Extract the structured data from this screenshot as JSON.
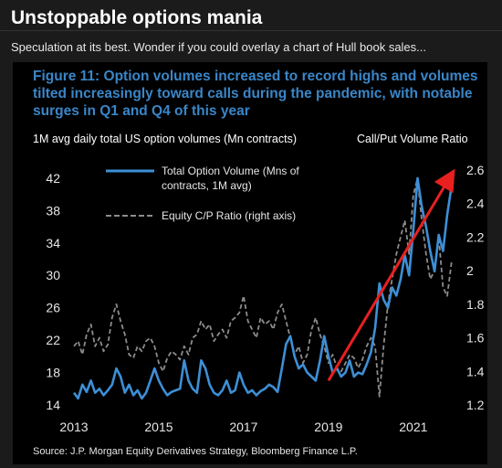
{
  "post": {
    "title": "Unstoppable options mania",
    "caption": "Speculation at its best. Wonder if you could overlay a chart of Hull book sales..."
  },
  "chart_data": {
    "type": "line",
    "title": "Figure 11: Option volumes increased to record highs and volumes tilted increasingly toward calls during the pandemic, with notable surges in Q1 and Q4 of this year",
    "ylabel_left": "1M avg daily total US option volumes (Mn contracts)",
    "ylabel_right": "Call/Put Volume Ratio",
    "source": "Source: J.P. Morgan Equity Derivatives Strategy, Bloomberg Finance L.P.",
    "xlim": [
      2013.0,
      2021.95
    ],
    "ylim_left": [
      14,
      43
    ],
    "ylim_right": [
      1.2,
      2.6
    ],
    "x_ticks": [
      "2013",
      "2015",
      "2017",
      "2019",
      "2021"
    ],
    "y_left_ticks": [
      "14",
      "18",
      "22",
      "26",
      "30",
      "34",
      "38",
      "42"
    ],
    "y_right_ticks": [
      "1.2",
      "1.4",
      "1.6",
      "1.8",
      "2",
      "2.2",
      "2.4",
      "2.6"
    ],
    "grid": false,
    "legend_position": "top-left",
    "colors": {
      "volume": "#3d8fd6",
      "ratio": "#8c8c8c",
      "arrow": "#e82020"
    },
    "series": [
      {
        "name": "Total Option Volume (Mns of contracts, 1M avg)",
        "axis": "left",
        "style": "solid",
        "x": [
          2013.0,
          2013.1,
          2013.2,
          2013.3,
          2013.4,
          2013.5,
          2013.6,
          2013.7,
          2013.8,
          2013.9,
          2014.0,
          2014.1,
          2014.2,
          2014.3,
          2014.4,
          2014.5,
          2014.6,
          2014.7,
          2014.8,
          2014.9,
          2015.0,
          2015.1,
          2015.2,
          2015.3,
          2015.4,
          2015.5,
          2015.6,
          2015.7,
          2015.8,
          2015.9,
          2016.0,
          2016.1,
          2016.2,
          2016.3,
          2016.4,
          2016.5,
          2016.6,
          2016.7,
          2016.8,
          2016.9,
          2017.0,
          2017.1,
          2017.2,
          2017.3,
          2017.4,
          2017.5,
          2017.6,
          2017.7,
          2017.8,
          2017.9,
          2018.0,
          2018.1,
          2018.2,
          2018.3,
          2018.4,
          2018.5,
          2018.6,
          2018.7,
          2018.8,
          2018.9,
          2019.0,
          2019.1,
          2019.2,
          2019.3,
          2019.4,
          2019.5,
          2019.6,
          2019.7,
          2019.8,
          2019.9,
          2020.0,
          2020.1,
          2020.2,
          2020.3,
          2020.4,
          2020.5,
          2020.6,
          2020.7,
          2020.8,
          2020.9,
          2021.0,
          2021.1,
          2021.2,
          2021.3,
          2021.4,
          2021.5,
          2021.6,
          2021.7,
          2021.8,
          2021.9
        ],
        "values": [
          15.5,
          14.8,
          16.5,
          15.6,
          17.0,
          15.5,
          16.0,
          15.2,
          15.8,
          16.5,
          18.5,
          17.5,
          15.5,
          16.5,
          15.2,
          15.8,
          14.8,
          15.5,
          17.0,
          18.5,
          17.0,
          16.0,
          15.2,
          15.6,
          15.8,
          16.0,
          19.5,
          17.0,
          16.0,
          15.5,
          19.5,
          18.5,
          16.5,
          15.5,
          15.2,
          15.8,
          17.0,
          15.5,
          15.8,
          18.0,
          16.5,
          15.5,
          15.8,
          15.2,
          15.7,
          16.0,
          16.5,
          16.2,
          15.6,
          18.5,
          21.5,
          22.5,
          20.0,
          18.5,
          19.0,
          18.0,
          17.5,
          17.0,
          19.5,
          22.5,
          20.0,
          18.0,
          18.5,
          17.5,
          18.0,
          19.5,
          17.5,
          18.0,
          17.8,
          19.0,
          20.5,
          23.5,
          29.0,
          27.0,
          26.0,
          28.5,
          27.5,
          29.5,
          32.5,
          30.0,
          35.5,
          42.0,
          38.5,
          36.0,
          33.0,
          30.5,
          35.0,
          33.0,
          37.5,
          41.0
        ]
      },
      {
        "name": "Equity C/P Ratio (right axis)",
        "axis": "right",
        "style": "dashed",
        "x": [
          2013.0,
          2013.1,
          2013.2,
          2013.3,
          2013.4,
          2013.5,
          2013.6,
          2013.7,
          2013.8,
          2013.9,
          2014.0,
          2014.1,
          2014.2,
          2014.3,
          2014.4,
          2014.5,
          2014.6,
          2014.7,
          2014.8,
          2014.9,
          2015.0,
          2015.1,
          2015.2,
          2015.3,
          2015.4,
          2015.5,
          2015.6,
          2015.7,
          2015.8,
          2015.9,
          2016.0,
          2016.1,
          2016.2,
          2016.3,
          2016.4,
          2016.5,
          2016.6,
          2016.7,
          2016.8,
          2016.9,
          2017.0,
          2017.1,
          2017.2,
          2017.3,
          2017.4,
          2017.5,
          2017.6,
          2017.7,
          2017.8,
          2017.9,
          2018.0,
          2018.1,
          2018.2,
          2018.3,
          2018.4,
          2018.5,
          2018.6,
          2018.7,
          2018.8,
          2018.9,
          2019.0,
          2019.1,
          2019.2,
          2019.3,
          2019.4,
          2019.5,
          2019.6,
          2019.7,
          2019.8,
          2019.9,
          2020.0,
          2020.1,
          2020.2,
          2020.3,
          2020.4,
          2020.5,
          2020.6,
          2020.7,
          2020.8,
          2020.9,
          2021.0,
          2021.1,
          2021.2,
          2021.3,
          2021.4,
          2021.5,
          2021.6,
          2021.7,
          2021.8,
          2021.9
        ],
        "values": [
          1.55,
          1.58,
          1.5,
          1.62,
          1.68,
          1.55,
          1.6,
          1.52,
          1.56,
          1.72,
          1.8,
          1.7,
          1.62,
          1.5,
          1.48,
          1.55,
          1.52,
          1.58,
          1.6,
          1.55,
          1.45,
          1.4,
          1.48,
          1.52,
          1.5,
          1.47,
          1.55,
          1.5,
          1.6,
          1.62,
          1.7,
          1.65,
          1.68,
          1.58,
          1.62,
          1.65,
          1.6,
          1.7,
          1.72,
          1.75,
          1.85,
          1.7,
          1.65,
          1.6,
          1.72,
          1.68,
          1.7,
          1.65,
          1.75,
          1.8,
          1.7,
          1.6,
          1.5,
          1.55,
          1.45,
          1.5,
          1.65,
          1.72,
          1.62,
          1.55,
          1.45,
          1.5,
          1.42,
          1.4,
          1.45,
          1.5,
          1.48,
          1.42,
          1.47,
          1.55,
          1.6,
          1.55,
          1.25,
          1.55,
          1.8,
          1.95,
          2.1,
          2.2,
          2.3,
          2.1,
          2.45,
          2.55,
          2.3,
          2.1,
          1.95,
          2.0,
          2.2,
          1.9,
          1.85,
          2.05
        ]
      }
    ],
    "annotations": [
      {
        "type": "arrow",
        "from": [
          2019.0,
          17.0
        ],
        "to": [
          2021.85,
          42.0
        ]
      }
    ]
  }
}
